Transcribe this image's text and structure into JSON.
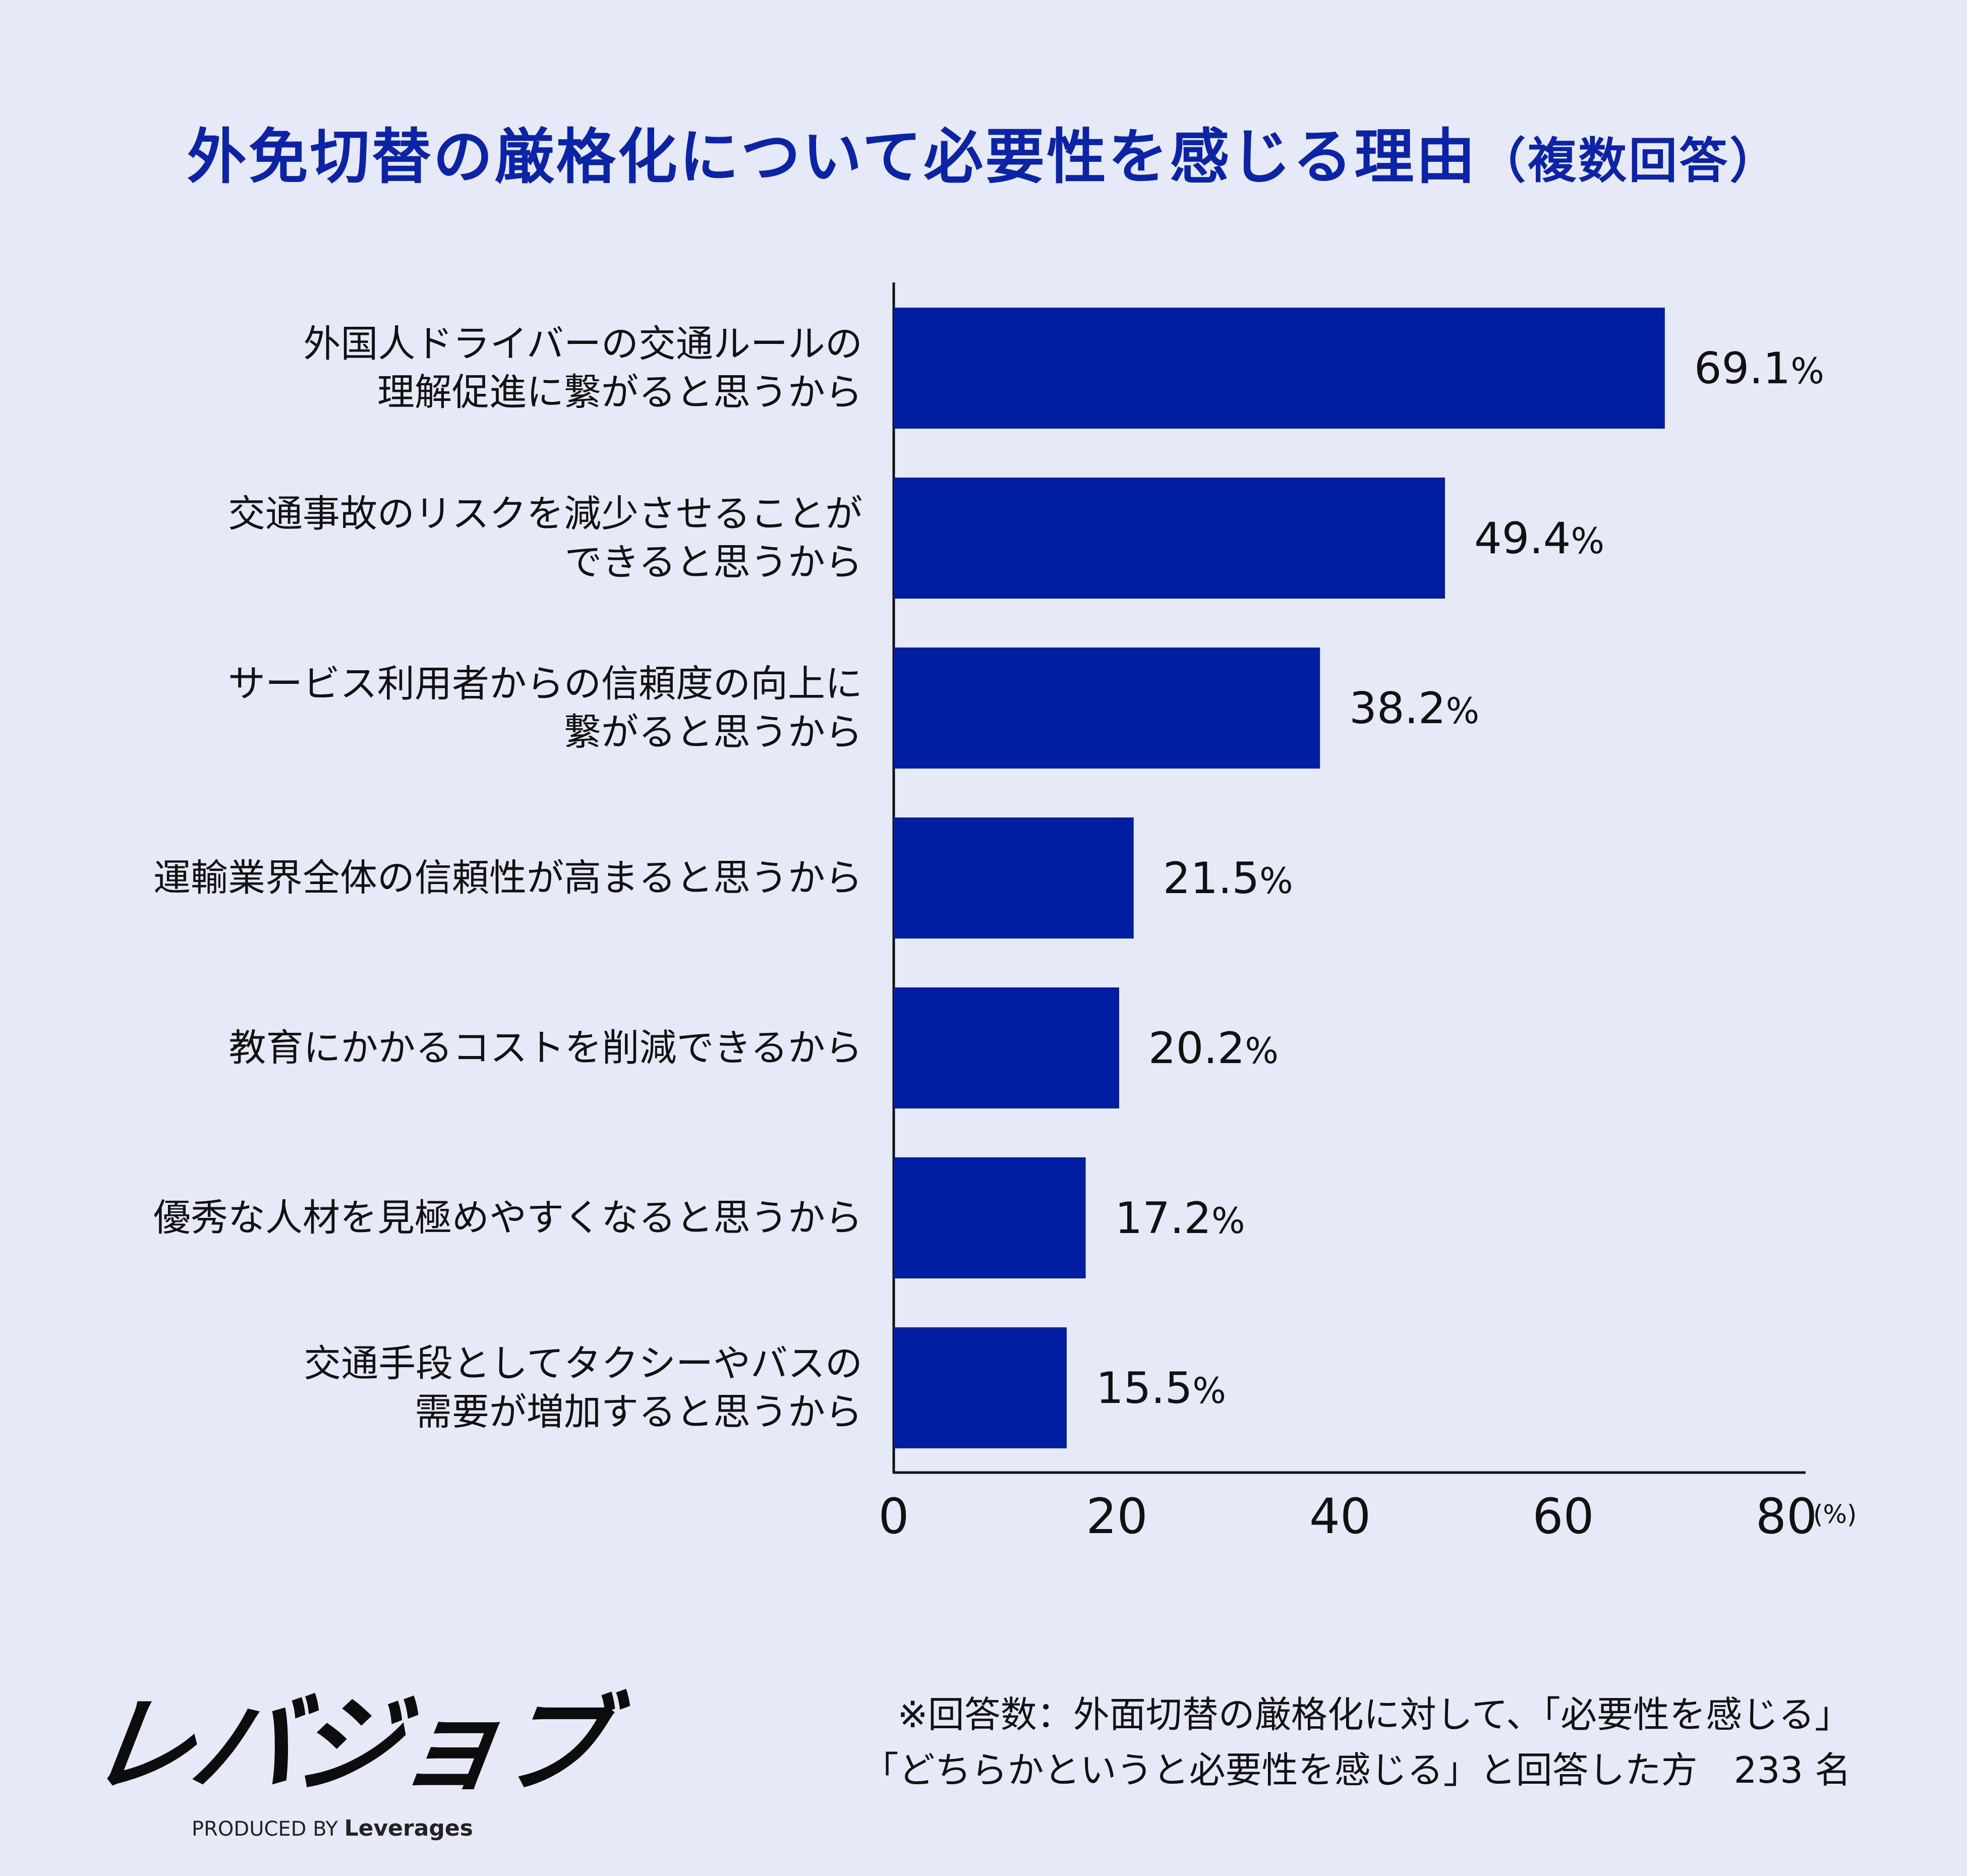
{
  "title": "外免切替の厳格化について必要性を感じる理由",
  "title_sub": "（複数回答）",
  "chart_data": {
    "type": "bar",
    "orientation": "horizontal",
    "categories": [
      [
        "外国人ドライバーの交通ルールの",
        "理解促進に繋がると思うから"
      ],
      [
        "交通事故のリスクを減少させることが",
        "できると思うから"
      ],
      [
        "サービス利用者からの信頼度の向上に",
        "繋がると思うから"
      ],
      [
        "運輸業界全体の信頼性が高まると思うから"
      ],
      [
        "教育にかかるコストを削減できるから"
      ],
      [
        "優秀な人材を見極めやすくなると思うから"
      ],
      [
        "交通手段としてタクシーやバスの",
        "需要が増加すると思うから"
      ]
    ],
    "values": [
      69.1,
      49.4,
      38.2,
      21.5,
      20.2,
      17.2,
      15.5
    ],
    "value_labels": [
      "69.1",
      "49.4",
      "38.2",
      "21.5",
      "20.2",
      "17.2",
      "15.5"
    ],
    "value_suffix": "%",
    "xlim": [
      0,
      80
    ],
    "xticks": [
      "0",
      "20",
      "40",
      "60",
      "80"
    ],
    "xunit": "(%)",
    "bar_color": "#001ea0",
    "grid": false
  },
  "logo": {
    "text": "レバジョブ",
    "produced_by": "PRODUCED BY",
    "brand": "Leverages"
  },
  "footnote": {
    "line1": "※回答数：外面切替の厳格化に対して、「必要性を感じる」",
    "line2": "「どちらかというと必要性を感じる」と回答した方　233 名"
  }
}
